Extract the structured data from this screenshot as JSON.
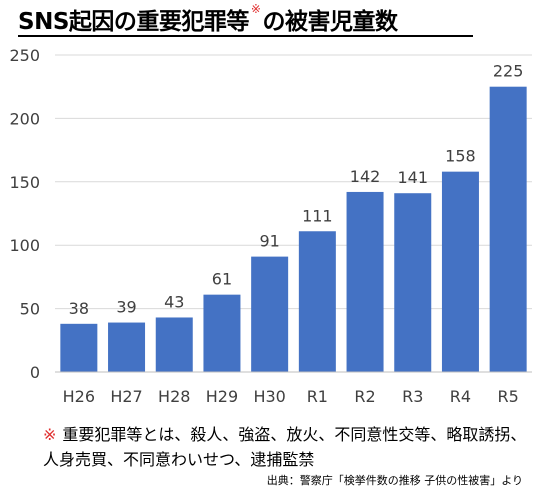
{
  "title": {
    "main": "SNS起因の重要犯罪等",
    "asterisk": "※",
    "suffix": "の被害児童数"
  },
  "note": {
    "mark": "※",
    "text": "重要犯罪等とは、殺人、強盗、放火、不同意性交等、略取誘拐、人身売買、不同意わいせつ、逮捕監禁"
  },
  "source": "出典：警察庁「検挙件数の推移 子供の性被害」より",
  "colors": {
    "bar": "#4472c4",
    "grid": "#d9d9d9",
    "axis": "#bfbfbf",
    "text": "#404040"
  },
  "chart_data": {
    "type": "bar",
    "categories": [
      "H26",
      "H27",
      "H28",
      "H29",
      "H30",
      "R1",
      "R2",
      "R3",
      "R4",
      "R5"
    ],
    "values": [
      38,
      39,
      43,
      61,
      91,
      111,
      142,
      141,
      158,
      225
    ],
    "ylim": [
      0,
      250
    ],
    "yticks": [
      0,
      50,
      100,
      150,
      200,
      250
    ],
    "grid": true,
    "data_labels": true
  }
}
